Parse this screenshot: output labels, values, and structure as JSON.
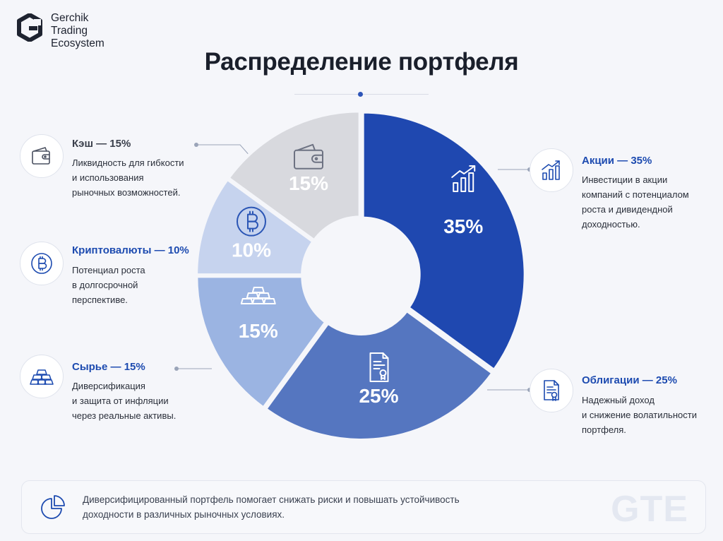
{
  "brand": {
    "line1": "Gerchik",
    "line2": "Trading",
    "line3": "Ecosystem",
    "watermark": "GTE"
  },
  "title": "Распределение портфеля",
  "chart_data": {
    "type": "pie",
    "variant": "donut",
    "slices": [
      {
        "key": "stocks",
        "label": "Акции",
        "value": 35,
        "display": "35%",
        "color": "#1f48b0",
        "text_color": "#ffffff",
        "icon": "chart-up-icon"
      },
      {
        "key": "bonds",
        "label": "Облигации",
        "value": 25,
        "display": "25%",
        "color": "#5576c0",
        "text_color": "#ffffff",
        "icon": "certificate-icon"
      },
      {
        "key": "commodities",
        "label": "Сырье",
        "value": 15,
        "display": "15%",
        "color": "#9bb4e2",
        "text_color": "#ffffff",
        "icon": "gold-bars-icon"
      },
      {
        "key": "crypto",
        "label": "Криптовалюты",
        "value": 10,
        "display": "10%",
        "color": "#c6d3ee",
        "text_color": "#ffffff",
        "icon": "bitcoin-icon"
      },
      {
        "key": "cash",
        "label": "Кэш",
        "value": 15,
        "display": "15%",
        "color": "#d8d9de",
        "text_color": "#ffffff",
        "icon": "wallet-icon"
      }
    ]
  },
  "callouts": {
    "stocks": {
      "title": "Акции — 35%",
      "lines": [
        "Инвестиции в акции",
        "компаний с потенциалом",
        "роста и дивидендной",
        "доходностью."
      ],
      "color": "#1d4bb0",
      "icon": "chart-up-icon"
    },
    "bonds": {
      "title": "Облигации — 25%",
      "lines": [
        "Надежный доход",
        "и снижение волатильности",
        "портфеля."
      ],
      "color": "#1d4bb0",
      "icon": "certificate-icon"
    },
    "commodities": {
      "title": "Сырье — 15%",
      "lines": [
        "Диверсификация",
        "и защита от инфляции",
        "через реальные активы."
      ],
      "color": "#1d4bb0",
      "icon": "gold-bars-icon"
    },
    "crypto": {
      "title": "Криптовалюты — 10%",
      "lines": [
        "Потенциал роста",
        "в долгосрочной",
        "перспективе."
      ],
      "color": "#1d4bb0",
      "icon": "bitcoin-icon"
    },
    "cash": {
      "title": "Кэш — 15%",
      "lines": [
        "Ликвидность для гибкости",
        "и использования",
        "рыночных возможностей."
      ],
      "color": "#3a3f4b",
      "icon": "wallet-icon"
    }
  },
  "footer": {
    "lines": [
      "Диверсифицированный портфель помогает снижать риски и повышать устойчивость",
      "доходности в различных рыночных условиях."
    ],
    "icon": "pie-chart-icon"
  }
}
